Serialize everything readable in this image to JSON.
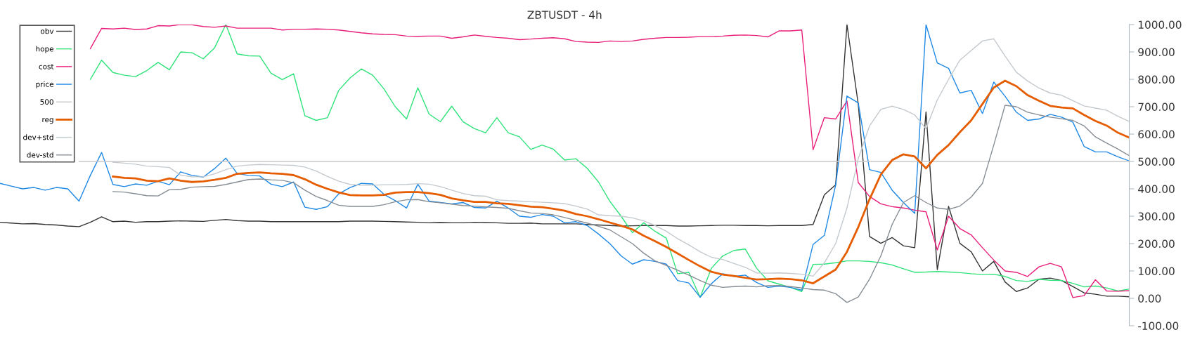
{
  "chart_data": {
    "type": "line",
    "title": "ZBTUSDT - 4h",
    "categories": [
      null,
      null,
      null,
      null,
      null,
      null,
      null,
      null,
      null,
      null,
      null,
      null,
      null,
      null,
      null,
      null,
      null,
      null,
      null,
      null,
      null,
      null,
      null,
      null,
      null,
      null,
      null,
      null,
      null,
      null,
      null,
      null,
      null,
      null,
      null,
      null,
      null,
      null,
      null,
      null,
      null,
      null,
      null,
      null,
      null,
      null,
      null,
      null,
      null,
      null,
      null,
      null,
      null,
      null,
      null,
      null,
      null,
      null,
      null,
      null,
      null,
      null,
      null,
      null,
      null,
      null,
      null,
      null,
      null,
      null,
      null,
      null,
      null,
      null,
      null,
      null,
      null,
      null,
      null,
      null,
      null,
      null,
      null,
      null,
      null,
      null,
      null,
      null,
      null,
      null,
      null,
      null,
      null,
      null,
      null,
      null,
      null,
      null,
      null,
      null,
      null
    ],
    "series": [
      {
        "name": "obv",
        "color": "#333333",
        "values": [
          278,
          275,
          272,
          273,
          270,
          268,
          264,
          262,
          278,
          298,
          280,
          282,
          278,
          280,
          280,
          282,
          283,
          282,
          281,
          285,
          288,
          284,
          282,
          282,
          280,
          280,
          280,
          280,
          280,
          280,
          280,
          282,
          282,
          282,
          281,
          280,
          279,
          278,
          276,
          277,
          276,
          276,
          278,
          277,
          276,
          274,
          274,
          275,
          272,
          272,
          272,
          272,
          270,
          268,
          266,
          264,
          265,
          266,
          266,
          266,
          264,
          264,
          265,
          266,
          267,
          267,
          266,
          266,
          265,
          266,
          266,
          266,
          270,
          378,
          415,
          1000,
          709,
          226,
          201,
          222,
          192,
          185,
          681,
          105,
          336,
          201,
          170,
          100,
          135,
          60,
          25,
          38,
          70,
          74,
          65,
          43,
          20,
          15,
          8,
          8,
          6
        ]
      },
      {
        "name": "hope",
        "color": "#2ee37a",
        "values": [
          null,
          null,
          null,
          null,
          null,
          null,
          null,
          null,
          800,
          870,
          825,
          815,
          810,
          832,
          862,
          835,
          900,
          897,
          875,
          915,
          1000,
          893,
          886,
          885,
          822,
          799,
          820,
          667,
          650,
          660,
          760,
          805,
          838,
          815,
          765,
          700,
          655,
          769,
          673,
          645,
          702,
          645,
          620,
          605,
          660,
          605,
          590,
          544,
          560,
          545,
          505,
          510,
          475,
          425,
          355,
          300,
          240,
          276,
          245,
          220,
          90,
          95,
          4,
          110,
          155,
          175,
          180,
          110,
          64,
          52,
          40,
          25,
          124,
          125,
          130,
          137,
          137,
          135,
          130,
          122,
          108,
          95,
          96,
          98,
          96,
          94,
          90,
          87,
          88,
          80,
          65,
          62,
          70,
          66,
          65,
          55,
          42,
          45,
          38,
          27,
          34
        ]
      },
      {
        "name": "cost",
        "color": "#e91e7a",
        "values": [
          null,
          null,
          null,
          null,
          null,
          null,
          null,
          null,
          912,
          986,
          984,
          987,
          982,
          984,
          996,
          995,
          1000,
          999,
          993,
          990,
          995,
          987,
          987,
          987,
          987,
          980,
          983,
          983,
          984,
          983,
          980,
          975,
          970,
          966,
          964,
          963,
          958,
          957,
          958,
          958,
          950,
          955,
          962,
          957,
          953,
          950,
          945,
          947,
          950,
          952,
          948,
          938,
          936,
          935,
          940,
          938,
          940,
          946,
          950,
          953,
          953,
          954,
          956,
          956,
          958,
          961,
          962,
          960,
          955,
          977,
          977,
          980,
          543,
          660,
          655,
          721,
          423,
          372,
          345,
          335,
          330,
          322,
          316,
          177,
          300,
          255,
          232,
          185,
          140,
          100,
          95,
          80,
          115,
          128,
          115,
          3,
          10,
          68,
          27,
          26,
          28
        ]
      },
      {
        "name": "price",
        "color": "#1e88e5",
        "values": [
          420,
          410,
          400,
          405,
          395,
          405,
          400,
          355,
          449,
          533,
          416,
          408,
          418,
          413,
          428,
          415,
          462,
          449,
          443,
          474,
          512,
          456,
          449,
          447,
          417,
          408,
          425,
          333,
          325,
          335,
          382,
          405,
          420,
          418,
          380,
          357,
          330,
          417,
          355,
          350,
          345,
          350,
          332,
          330,
          355,
          330,
          300,
          296,
          306,
          300,
          276,
          280,
          266,
          235,
          200,
          155,
          125,
          141,
          135,
          125,
          65,
          56,
          4,
          54,
          90,
          80,
          85,
          58,
          40,
          45,
          40,
          30,
          197,
          230,
          414,
          739,
          714,
          470,
          460,
          395,
          350,
          310,
          1000,
          860,
          840,
          750,
          760,
          675,
          790,
          738,
          680,
          650,
          655,
          672,
          662,
          644,
          555,
          535,
          535,
          517,
          502
        ]
      },
      {
        "name": "500",
        "color": "#c8c8c8",
        "values": [
          null,
          null,
          null,
          null,
          null,
          null,
          null,
          500,
          500,
          500,
          500,
          500,
          500,
          500,
          500,
          500,
          500,
          500,
          500,
          500,
          500,
          500,
          500,
          500,
          500,
          500,
          500,
          500,
          500,
          500,
          500,
          500,
          500,
          500,
          500,
          500,
          500,
          500,
          500,
          500,
          500,
          500,
          500,
          500,
          500,
          500,
          500,
          500,
          500,
          500,
          500,
          500,
          500,
          500,
          500,
          500,
          500,
          500,
          500,
          500,
          500,
          500,
          500,
          500,
          500,
          500,
          500,
          500,
          500,
          500,
          500,
          500,
          500,
          500,
          500,
          500,
          500,
          500,
          500,
          500,
          500,
          500,
          500,
          500,
          500,
          500,
          500,
          500,
          500,
          500,
          500,
          500,
          500,
          500,
          500,
          500,
          500,
          500,
          500,
          500,
          500
        ]
      },
      {
        "name": "reg",
        "color": "#e65c00",
        "values": [
          null,
          null,
          null,
          null,
          null,
          null,
          null,
          null,
          null,
          null,
          445,
          440,
          438,
          430,
          428,
          438,
          430,
          425,
          427,
          433,
          440,
          455,
          458,
          460,
          457,
          455,
          450,
          435,
          415,
          400,
          387,
          377,
          376,
          376,
          378,
          386,
          388,
          388,
          384,
          378,
          365,
          358,
          352,
          352,
          347,
          345,
          340,
          335,
          333,
          327,
          320,
          308,
          300,
          289,
          277,
          265,
          252,
          229,
          209,
          188,
          164,
          140,
          117,
          97,
          87,
          82,
          75,
          69,
          70,
          72,
          70,
          66,
          55,
          80,
          105,
          170,
          260,
          362,
          452,
          505,
          526,
          518,
          475,
          524,
          560,
          607,
          650,
          710,
          770,
          795,
          775,
          742,
          722,
          703,
          697,
          694,
          670,
          648,
          631,
          605,
          587
        ]
      },
      {
        "name": "dev+std",
        "color": "#c4c9ce",
        "values": [
          null,
          null,
          null,
          null,
          null,
          null,
          null,
          null,
          null,
          null,
          497,
          494,
          490,
          483,
          481,
          478,
          450,
          444,
          444,
          455,
          470,
          483,
          487,
          489,
          488,
          487,
          486,
          479,
          465,
          445,
          428,
          416,
          413,
          413,
          415,
          415,
          416,
          419,
          417,
          408,
          395,
          383,
          375,
          373,
          360,
          357,
          355,
          353,
          351,
          349,
          346,
          337,
          326,
          305,
          302,
          300,
          294,
          283,
          266,
          245,
          218,
          195,
          170,
          150,
          142,
          127,
          113,
          93,
          92,
          93,
          91,
          88,
          81,
          130,
          200,
          330,
          510,
          630,
          690,
          702,
          690,
          670,
          620,
          725,
          800,
          870,
          905,
          940,
          948,
          885,
          826,
          794,
          768,
          750,
          742,
          722,
          703,
          695,
          687,
          665,
          646
        ]
      },
      {
        "name": "dev-std",
        "color": "#868d94",
        "values": [
          null,
          null,
          null,
          null,
          null,
          null,
          null,
          null,
          null,
          null,
          390,
          388,
          382,
          375,
          374,
          397,
          398,
          406,
          408,
          409,
          416,
          425,
          434,
          436,
          433,
          431,
          422,
          395,
          372,
          357,
          340,
          336,
          336,
          336,
          342,
          353,
          360,
          361,
          353,
          349,
          344,
          339,
          337,
          334,
          332,
          329,
          320,
          312,
          310,
          305,
          295,
          285,
          275,
          263,
          250,
          225,
          200,
          165,
          137,
          120,
          103,
          85,
          65,
          48,
          40,
          43,
          45,
          42,
          46,
          47,
          43,
          38,
          32,
          30,
          17,
          -15,
          5,
          70,
          155,
          270,
          350,
          375,
          350,
          330,
          325,
          337,
          370,
          420,
          560,
          705,
          700,
          680,
          670,
          662,
          656,
          650,
          630,
          590,
          567,
          545,
          521
        ]
      }
    ],
    "ylim": [
      -100,
      1000
    ],
    "yticks": [
      {
        "value": -100,
        "label": "-100.00"
      },
      {
        "value": 0,
        "label": "0.00"
      },
      {
        "value": 100,
        "label": "100.00"
      },
      {
        "value": 200,
        "label": "200.00"
      },
      {
        "value": 300,
        "label": "300.00"
      },
      {
        "value": 400,
        "label": "400.00"
      },
      {
        "value": 500,
        "label": "500.00"
      },
      {
        "value": 600,
        "label": "600.00"
      },
      {
        "value": 700,
        "label": "700.00"
      },
      {
        "value": 800,
        "label": "800.00"
      },
      {
        "value": 900,
        "label": "900.00"
      },
      {
        "value": 1000,
        "label": "1000.00"
      }
    ],
    "tick_labels": "y",
    "grid": false,
    "legend": "top left",
    "marker": "none",
    "line_style": "solid"
  }
}
